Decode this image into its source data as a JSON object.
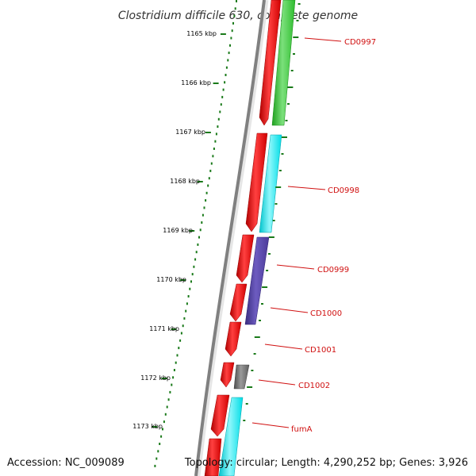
{
  "title": "Clostridium difficile 630, complete genome",
  "footer": {
    "accession": "Accession: NC_009089",
    "summary": "Topology: circular; Length: 4,290,252 bp; Genes: 3,926"
  },
  "ruler": {
    "labels": [
      "1165 kbp",
      "1166 kbp",
      "1167 kbp",
      "1168 kbp",
      "1169 kbp",
      "1170 kbp",
      "1171 kbp",
      "1172 kbp",
      "1173 kbp"
    ]
  },
  "genes": [
    {
      "label": "CD0997",
      "category_color": "#33cc33"
    },
    {
      "label": "CD0998",
      "category_color": "#00e5ee"
    },
    {
      "label": "CD0999",
      "category_color": "#4b3b96"
    },
    {
      "label": "CD1000",
      "category_color": "#4b3b96"
    },
    {
      "label": "CD1001",
      "category_color": "#ff0000"
    },
    {
      "label": "CD1002",
      "category_color": "#666666"
    },
    {
      "label": "fumA",
      "category_color": "#00e5ee"
    }
  ],
  "colors": {
    "forward_strand": "#ff0000",
    "backbone": "#808080",
    "tick": "#1a7a1a",
    "label": "#d01010"
  }
}
